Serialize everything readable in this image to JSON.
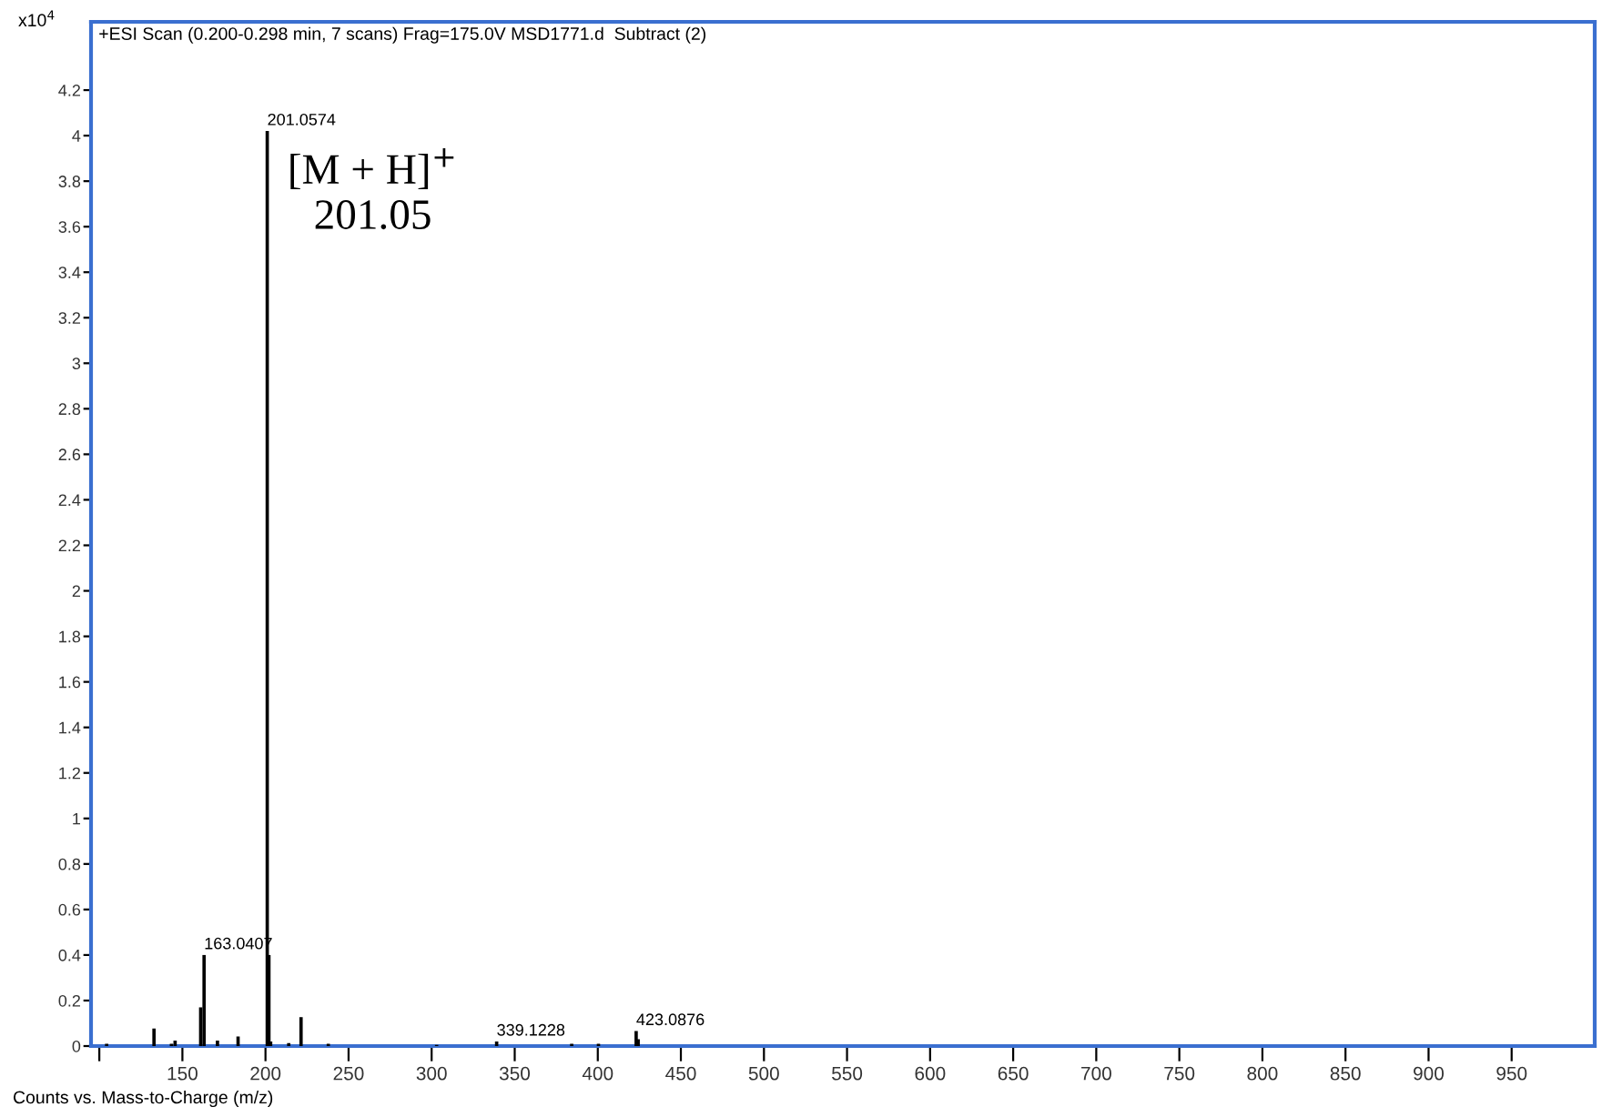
{
  "chart_data": {
    "type": "bar",
    "title": "+ESI Scan (0.200-0.298 min, 7 scans) Frag=175.0V MSD1771.d  Subtract (2)",
    "xlabel": "Counts vs. Mass-to-Charge (m/z)",
    "x": [
      104.4,
      132.9,
      143.4,
      145.6,
      161.0,
      163.0407,
      171.1,
      183.5,
      201.0574,
      202.06,
      203.1,
      214.0,
      221.4,
      237.8,
      303.0,
      339.1228,
      384.3,
      400.4,
      423.0876,
      424.3
    ],
    "values": [
      0.01,
      0.077,
      0.01,
      0.024,
      0.17,
      0.4,
      0.024,
      0.042,
      4.02,
      0.4,
      0.02,
      0.013,
      0.127,
      0.01,
      0.005,
      0.02,
      0.01,
      0.01,
      0.066,
      0.03
    ],
    "color": "#000000",
    "xlim": [
      95,
      1000
    ],
    "xticks": [
      {
        "value": 100,
        "label": null
      },
      150,
      200,
      250,
      300,
      350,
      400,
      450,
      500,
      550,
      600,
      650,
      700,
      750,
      800,
      850,
      900,
      950
    ],
    "ylim": [
      0,
      4.5
    ],
    "yticks": [
      0,
      0.2,
      0.4,
      0.6,
      0.8,
      1,
      1.2,
      1.4,
      1.6,
      1.8,
      2,
      2.2,
      2.4,
      2.6,
      2.8,
      3,
      3.2,
      3.4,
      3.6,
      3.8,
      4,
      4.2
    ],
    "grid": false,
    "annotations": [
      {
        "text": "x10$^{4}$"
      },
      {
        "text": "201.0574",
        "x": 201.0574,
        "y": 4.02
      },
      {
        "text": "163.0407",
        "x": 163.0407,
        "y": 0.4
      },
      {
        "text": "339.1228",
        "x": 339.1228,
        "y": 0.02
      },
      {
        "text": "423.0876",
        "x": 423.0876,
        "y": 0.066
      },
      {
        "text": "[M + H]$^{+}$\n201.05",
        "x": 201.0574,
        "y": 4.02
      }
    ]
  }
}
